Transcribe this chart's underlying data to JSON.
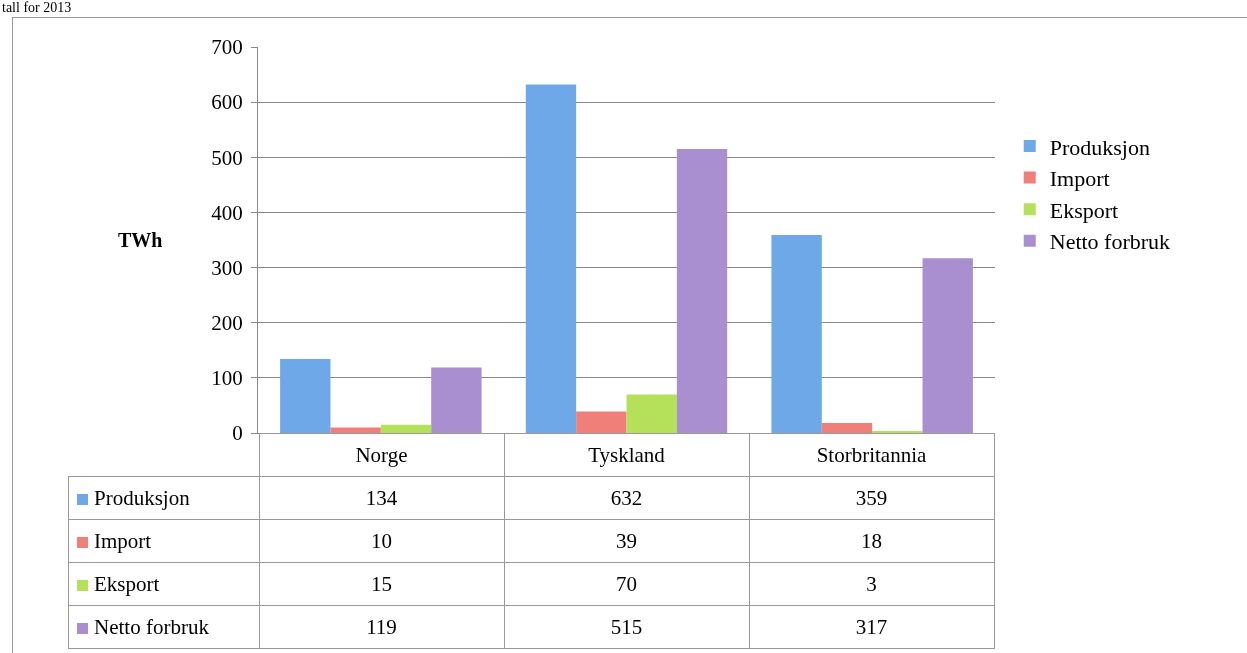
{
  "chart_data": {
    "type": "bar",
    "annotations": [
      "tall for 2013"
    ],
    "ylabel": "TWh",
    "categories": [
      "Norge",
      "Tyskland",
      "Storbritannia"
    ],
    "series": [
      {
        "name": "Produksjon",
        "color": "#6fa8e8",
        "values": [
          134,
          632,
          359
        ]
      },
      {
        "name": "Import",
        "color": "#f07f7a",
        "values": [
          10,
          39,
          18
        ]
      },
      {
        "name": "Eksport",
        "color": "#b4e05a",
        "values": [
          15,
          70,
          3
        ]
      },
      {
        "name": "Netto forbruk",
        "color": "#a98ed0",
        "values": [
          119,
          515,
          317
        ]
      }
    ],
    "ylim": [
      0,
      700
    ],
    "yticks": [
      0,
      100,
      200,
      300,
      400,
      500,
      600,
      700
    ],
    "grid": "y",
    "legend": "right",
    "data_labels": true
  }
}
